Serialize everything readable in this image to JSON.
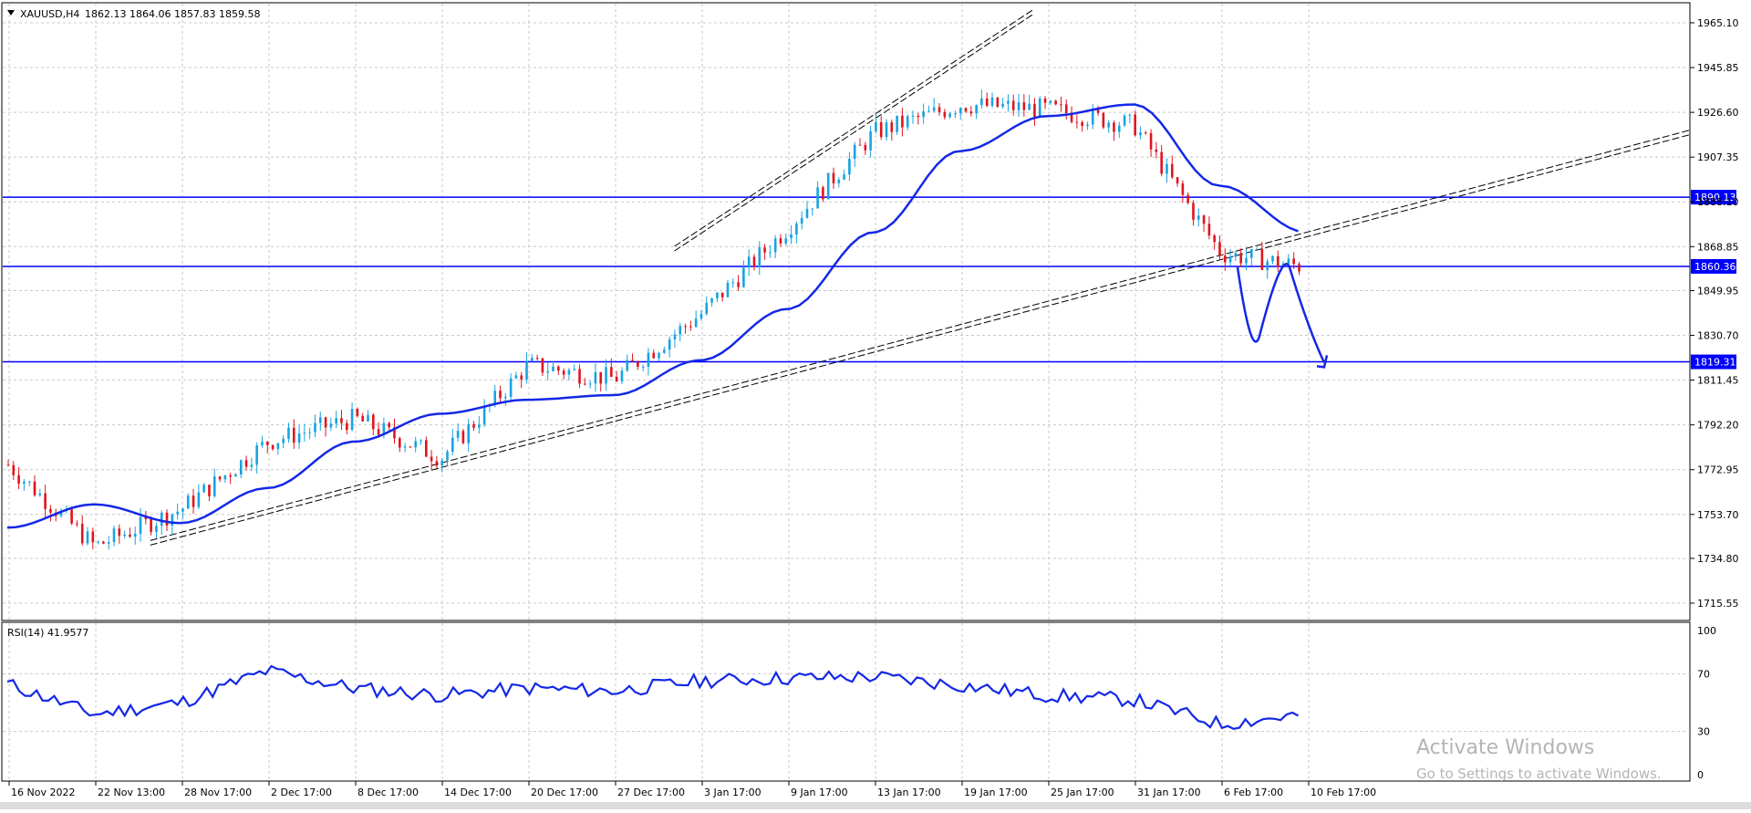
{
  "header": {
    "symbol_label": "XAUUSD,H4",
    "ohlc_label": "1862.13 1864.06 1857.83 1859.58",
    "collapse_icon": "triangle-down-icon"
  },
  "rsi_panel": {
    "label": "RSI(14) 41.9577",
    "levels": [
      "100",
      "70",
      "30",
      "0"
    ]
  },
  "watermark": {
    "line1": "Activate Windows",
    "line2": "Go to Settings to activate Windows."
  },
  "colors": {
    "bull": "#19a3e0",
    "bear": "#e0141e",
    "ma": "#1428e6",
    "level_line": "#0000ff",
    "grid": "#c8c8c8",
    "trendline": "#000000",
    "background": "#ffffff"
  },
  "chart_data": [
    {
      "type": "line",
      "title": "XAUUSD,H4",
      "subtitle": "1862.13 1864.06 1857.83 1859.58",
      "x_tick_labels": [
        "16 Nov 2022",
        "22 Nov 13:00",
        "28 Nov 17:00",
        "2 Dec 17:00",
        "8 Dec 17:00",
        "14 Dec 17:00",
        "20 Dec 17:00",
        "27 Dec 17:00",
        "3 Jan 17:00",
        "9 Jan 17:00",
        "13 Jan 17:00",
        "19 Jan 17:00",
        "25 Jan 17:00",
        "31 Jan 17:00",
        "6 Feb 17:00",
        "10 Feb 17:00"
      ],
      "y_tick_labels": [
        "1965.10",
        "1945.85",
        "1926.60",
        "1907.35",
        "1888.10",
        "1868.85",
        "1849.95",
        "1830.70",
        "1811.45",
        "1792.20",
        "1772.95",
        "1753.70",
        "1734.80",
        "1715.55"
      ],
      "ylim": [
        1715.55,
        1965.1
      ],
      "grid": true,
      "horizontal_levels": [
        {
          "value": 1890.13,
          "label": "1890.13"
        },
        {
          "value": 1860.36,
          "label": "1860.36"
        },
        {
          "value": 1819.31,
          "label": "1819.31"
        }
      ],
      "series": [
        {
          "kind": "price_close_approx",
          "x": [
            "16 Nov 2022",
            "22 Nov 13:00",
            "28 Nov 17:00",
            "2 Dec 17:00",
            "8 Dec 17:00",
            "14 Dec 17:00",
            "20 Dec 17:00",
            "27 Dec 17:00",
            "3 Jan 17:00",
            "9 Jan 17:00",
            "13 Jan 17:00",
            "19 Jan 17:00",
            "25 Jan 17:00",
            "31 Jan 17:00",
            "6 Feb 17:00",
            "10 Feb 17:00"
          ],
          "values": [
            1775,
            1740,
            1756,
            1785,
            1795,
            1778,
            1818,
            1812,
            1840,
            1877,
            1918,
            1930,
            1928,
            1921,
            1866,
            1860
          ]
        },
        {
          "kind": "moving_average",
          "x": [
            "16 Nov 2022",
            "22 Nov 13:00",
            "28 Nov 17:00",
            "2 Dec 17:00",
            "8 Dec 17:00",
            "14 Dec 17:00",
            "20 Dec 17:00",
            "27 Dec 17:00",
            "3 Jan 17:00",
            "9 Jan 17:00",
            "13 Jan 17:00",
            "19 Jan 17:00",
            "25 Jan 17:00",
            "31 Jan 17:00",
            "6 Feb 17:00",
            "10 Feb 17:00"
          ],
          "values": [
            1748,
            1758,
            1750,
            1765,
            1785,
            1797,
            1803,
            1805,
            1820,
            1842,
            1875,
            1910,
            1925,
            1930,
            1895,
            1875
          ]
        },
        {
          "kind": "projection",
          "x": [
            "10 Feb 17:00",
            "+1",
            "+2",
            "+3"
          ],
          "values": [
            1860,
            1830,
            1860,
            1819
          ]
        }
      ]
    },
    {
      "type": "line",
      "title": "RSI(14) 41.9577",
      "ylim": [
        0,
        100
      ],
      "y_tick_labels": [
        "100",
        "70",
        "30",
        "0"
      ],
      "x": [
        "16 Nov 2022",
        "22 Nov 13:00",
        "28 Nov 17:00",
        "2 Dec 17:00",
        "8 Dec 17:00",
        "14 Dec 17:00",
        "20 Dec 17:00",
        "27 Dec 17:00",
        "3 Jan 17:00",
        "9 Jan 17:00",
        "13 Jan 17:00",
        "19 Jan 17:00",
        "25 Jan 17:00",
        "31 Jan 17:00",
        "6 Feb 17:00",
        "10 Feb 17:00"
      ],
      "values": [
        63,
        42,
        50,
        72,
        60,
        55,
        60,
        58,
        65,
        67,
        68,
        62,
        55,
        52,
        35,
        42
      ]
    }
  ]
}
